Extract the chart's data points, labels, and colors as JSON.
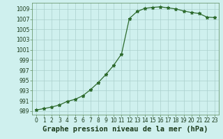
{
  "hours": [
    0,
    1,
    2,
    3,
    4,
    5,
    6,
    7,
    8,
    9,
    10,
    11,
    12,
    13,
    14,
    15,
    16,
    17,
    18,
    19,
    20,
    21,
    22,
    23
  ],
  "pressure": [
    989.2,
    989.5,
    989.8,
    990.2,
    990.9,
    991.3,
    992.0,
    993.2,
    994.6,
    996.2,
    998.0,
    1000.2,
    1007.1,
    1008.5,
    1009.1,
    1009.3,
    1009.4,
    1009.2,
    1009.0,
    1008.6,
    1008.3,
    1008.1,
    1007.4,
    1007.3
  ],
  "line_color": "#2d6a2d",
  "marker": "*",
  "marker_size": 3.5,
  "bg_color": "#cff0ee",
  "grid_color": "#aacfcc",
  "xlabel": "Graphe pression niveau de la mer (hPa)",
  "xlabel_fontsize": 7.5,
  "ylabel_ticks": [
    989,
    991,
    993,
    995,
    997,
    999,
    1001,
    1003,
    1005,
    1007,
    1009
  ],
  "ylim": [
    988.3,
    1010.2
  ],
  "xlim": [
    -0.5,
    23.5
  ],
  "xticks": [
    0,
    1,
    2,
    3,
    4,
    5,
    6,
    7,
    8,
    9,
    10,
    11,
    12,
    13,
    14,
    15,
    16,
    17,
    18,
    19,
    20,
    21,
    22,
    23
  ],
  "tick_fontsize": 5.5,
  "linewidth": 0.9
}
